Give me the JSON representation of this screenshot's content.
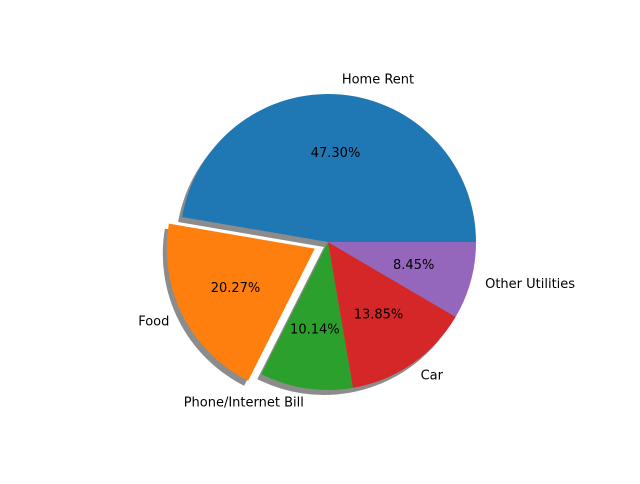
{
  "chart_data": {
    "type": "pie",
    "title": "",
    "slices": [
      {
        "label": "Home Rent",
        "value": 47.3,
        "display": "47.30%",
        "color": "#1f77b4",
        "exploded": false
      },
      {
        "label": "Food",
        "value": 20.27,
        "display": "20.27%",
        "color": "#ff7f0e",
        "exploded": true
      },
      {
        "label": "Phone/Internet Bill",
        "value": 10.14,
        "display": "10.14%",
        "color": "#2ca02c",
        "exploded": false
      },
      {
        "label": "Car",
        "value": 13.85,
        "display": "13.85%",
        "color": "#d62728",
        "exploded": false
      },
      {
        "label": "Other Utilities",
        "value": 8.45,
        "display": "8.45%",
        "color": "#9467bd",
        "exploded": false
      }
    ],
    "shadow": true,
    "start_angle": 0,
    "direction": "counterclockwise",
    "legend": "none"
  }
}
